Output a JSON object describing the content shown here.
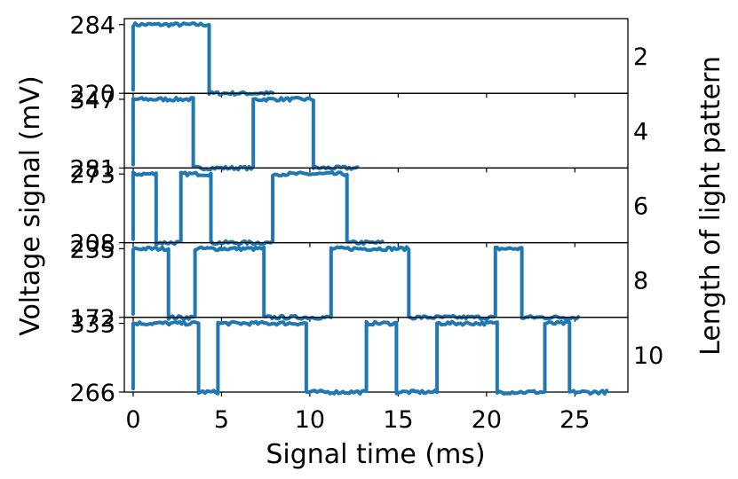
{
  "chart_data": {
    "type": "line",
    "xlabel": "Signal time (ms)",
    "ylabel": "Voltage signal (mV)",
    "right_label": "Length of light pattern",
    "xlim": [
      -0.5,
      28
    ],
    "x_ticks": [
      0,
      5,
      10,
      15,
      20,
      25
    ],
    "grid": false,
    "color": "#1f77b4",
    "panels": [
      {
        "pattern_length": "2",
        "y_ticks": [
          "284",
          "220"
        ],
        "low": 220,
        "high": 284,
        "ylim": [
          220,
          284
        ],
        "levels": [
          1,
          0
        ],
        "bit_width_ms": 4.3,
        "end_ms": 7.9
      },
      {
        "pattern_length": "4",
        "y_ticks": [
          "347",
          "281"
        ],
        "low": 281,
        "high": 347,
        "ylim": [
          281,
          347
        ],
        "levels": [
          1,
          0,
          1,
          0
        ],
        "bit_width_ms": 3.4,
        "end_ms": 12.7
      },
      {
        "pattern_length": "6",
        "y_ticks": [
          "273",
          "208"
        ],
        "low": 208,
        "high": 273,
        "ylim": [
          208,
          273
        ],
        "levels": [
          1,
          0,
          1,
          0,
          1,
          0
        ],
        "bit_width_ms": 1.4,
        "transitions_ms": [
          1.3,
          2.7,
          4.4,
          7.9,
          12.1
        ],
        "end_ms": 14.1
      },
      {
        "pattern_length": "8",
        "y_ticks": [
          "235",
          "172"
        ],
        "low": 172,
        "high": 235,
        "ylim": [
          172,
          235
        ],
        "levels": [
          1,
          0,
          1,
          0,
          1,
          0,
          1,
          0
        ],
        "transitions_ms": [
          2.0,
          3.5,
          7.4,
          11.2,
          15.6,
          20.5,
          22.0
        ],
        "end_ms": 25.2
      },
      {
        "pattern_length": "10",
        "y_ticks": [
          "333",
          "266"
        ],
        "low": 266,
        "high": 333,
        "ylim": [
          266,
          333
        ],
        "levels": [
          1,
          0,
          1,
          0,
          1,
          0,
          1,
          0,
          1,
          0
        ],
        "transitions_ms": [
          3.7,
          4.8,
          9.8,
          13.2,
          14.9,
          17.2,
          20.6,
          23.3,
          24.7
        ],
        "end_ms": 26.8
      }
    ]
  }
}
